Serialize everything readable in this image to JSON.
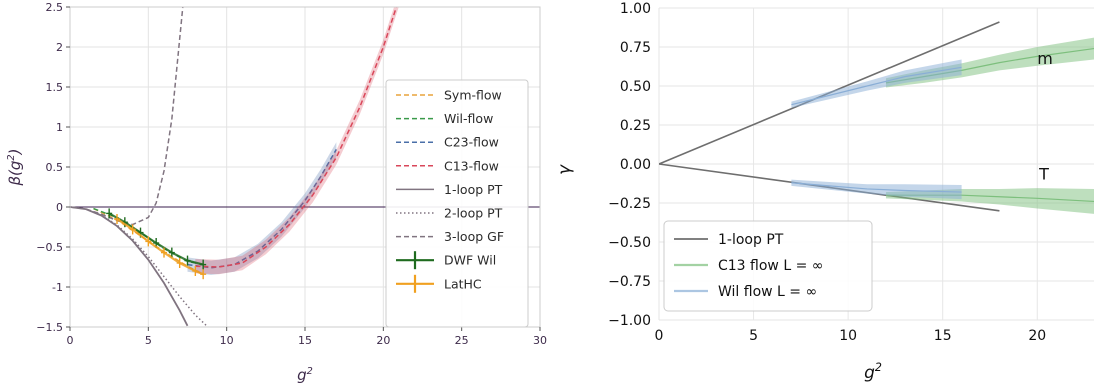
{
  "chart_data": [
    {
      "type": "line",
      "xlabel": "g²",
      "ylabel": "β(g²)",
      "xlim": [
        0,
        30
      ],
      "ylim": [
        -1.5,
        2.5
      ],
      "xticks": [
        0,
        5,
        10,
        15,
        20,
        25,
        30
      ],
      "yticks": [
        -1.5,
        -1.0,
        -0.5,
        0.0,
        0.5,
        1.0,
        1.5,
        2.0,
        2.5
      ],
      "grid": true,
      "legend_position": "right",
      "series": [
        {
          "name": "Sym-flow",
          "style": "dashed",
          "color": "#e8a33c",
          "x": [
            1.5,
            3,
            4.5,
            6,
            7.5,
            8.5
          ],
          "y": [
            -0.02,
            -0.16,
            -0.36,
            -0.56,
            -0.74,
            -0.84
          ]
        },
        {
          "name": "Wil-flow",
          "style": "dashed",
          "color": "#3a9a4a",
          "x": [
            1.5,
            3,
            4.5,
            6,
            7.5,
            8.5
          ],
          "y": [
            -0.02,
            -0.13,
            -0.32,
            -0.52,
            -0.68,
            -0.72
          ]
        },
        {
          "name": "C23-flow",
          "style": "dashed",
          "color": "#4a6fa8",
          "x": [
            7.5,
            9,
            10.5,
            12,
            13.5,
            15,
            16,
            17
          ],
          "y": [
            -0.72,
            -0.76,
            -0.72,
            -0.55,
            -0.28,
            0.08,
            0.38,
            0.72
          ]
        },
        {
          "name": "C13-flow",
          "style": "dashed",
          "color": "#d9475a",
          "x": [
            8,
            9.5,
            11,
            12.5,
            14,
            15.5,
            17,
            18.5,
            20,
            21
          ],
          "y": [
            -0.74,
            -0.75,
            -0.7,
            -0.5,
            -0.22,
            0.15,
            0.62,
            1.25,
            2.0,
            2.6
          ]
        },
        {
          "name": "1-loop PT",
          "style": "solid",
          "color": "#807480",
          "x": [
            0,
            1,
            2,
            3,
            4,
            5,
            6,
            7,
            7.5
          ],
          "y": [
            0,
            -0.026,
            -0.106,
            -0.238,
            -0.422,
            -0.66,
            -0.95,
            -1.293,
            -1.485
          ]
        },
        {
          "name": "2-loop PT",
          "style": "dotted",
          "color": "#807480",
          "x": [
            0,
            1,
            2,
            3,
            4,
            5,
            6,
            7,
            8,
            8.8
          ],
          "y": [
            0,
            -0.025,
            -0.1,
            -0.225,
            -0.4,
            -0.62,
            -0.87,
            -1.12,
            -1.35,
            -1.5
          ]
        },
        {
          "name": "3-loop GF",
          "style": "dashed",
          "color": "#807480",
          "x": [
            0,
            1,
            2,
            3,
            4,
            5,
            5.5,
            6,
            6.5,
            7.2
          ],
          "y": [
            0,
            -0.024,
            -0.09,
            -0.17,
            -0.22,
            -0.13,
            0.05,
            0.45,
            1.1,
            2.5
          ]
        },
        {
          "name": "DWF Wil",
          "style": "errorbar",
          "color": "#1f6b1f",
          "x": [
            2.5,
            3.5,
            4.5,
            5.5,
            6.5,
            7.5,
            8.5
          ],
          "y": [
            -0.08,
            -0.19,
            -0.32,
            -0.45,
            -0.57,
            -0.67,
            -0.72
          ]
        },
        {
          "name": "LatHC",
          "style": "errorbar",
          "color": "#f0a020",
          "x": [
            3,
            4,
            5,
            6,
            7,
            8,
            8.5
          ],
          "y": [
            -0.15,
            -0.28,
            -0.43,
            -0.57,
            -0.7,
            -0.8,
            -0.84
          ]
        }
      ]
    },
    {
      "type": "line",
      "xlabel": "g²",
      "ylabel": "γ",
      "xlim": [
        0,
        23
      ],
      "ylim": [
        -1.0,
        1.0
      ],
      "xticks": [
        0,
        5,
        10,
        15,
        20
      ],
      "yticks": [
        -1.0,
        -0.75,
        -0.5,
        -0.25,
        0.0,
        0.25,
        0.5,
        0.75,
        1.0
      ],
      "yticklabels": [
        "−1.00",
        "−0.75",
        "−0.50",
        "−0.25",
        "0.00",
        "0.25",
        "0.50",
        "0.75",
        "1.00"
      ],
      "grid": true,
      "legend_position": "lower-left",
      "annotations": [
        "m",
        "T"
      ],
      "series": [
        {
          "name": "1-loop PT",
          "style": "solid",
          "color": "#6e6e6e",
          "segments": [
            {
              "x": [
                0,
                18
              ],
              "y": [
                0,
                0.91
              ]
            },
            {
              "x": [
                0,
                18
              ],
              "y": [
                0,
                -0.3
              ]
            }
          ]
        },
        {
          "name": "C13 flow L = ∞",
          "style": "band",
          "color": "#7dbf7d",
          "segments": [
            {
              "x": [
                12,
                14,
                16,
                18,
                20,
                23
              ],
              "y": [
                0.52,
                0.56,
                0.6,
                0.65,
                0.69,
                0.74
              ],
              "err": [
                0.03,
                0.04,
                0.045,
                0.05,
                0.06,
                0.07
              ]
            },
            {
              "x": [
                12,
                14,
                16,
                18,
                20,
                23
              ],
              "y": [
                -0.2,
                -0.2,
                -0.2,
                -0.21,
                -0.22,
                -0.24
              ],
              "err": [
                0.02,
                0.03,
                0.04,
                0.05,
                0.065,
                0.08
              ]
            }
          ]
        },
        {
          "name": "Wil flow L = ∞",
          "style": "band",
          "color": "#8aaed6",
          "segments": [
            {
              "x": [
                7,
                9,
                11,
                13,
                16
              ],
              "y": [
                0.38,
                0.44,
                0.5,
                0.56,
                0.62
              ],
              "err": [
                0.02,
                0.025,
                0.03,
                0.04,
                0.05
              ]
            },
            {
              "x": [
                7,
                9,
                11,
                13,
                16
              ],
              "y": [
                -0.12,
                -0.14,
                -0.16,
                -0.17,
                -0.18
              ],
              "err": [
                0.02,
                0.025,
                0.03,
                0.04,
                0.045
              ]
            }
          ]
        }
      ]
    }
  ]
}
